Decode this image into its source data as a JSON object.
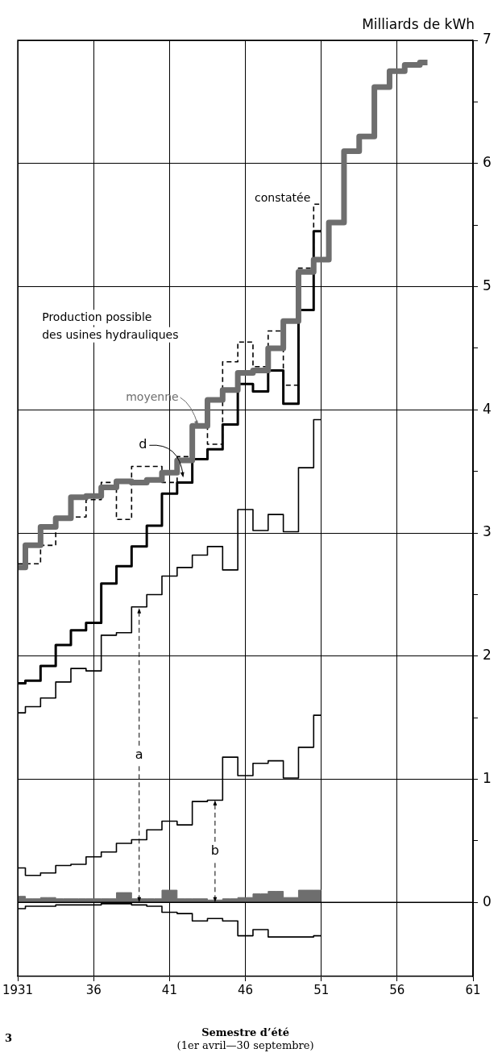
{
  "chart_data": {
    "type": "step",
    "xlabel": "Semestre d’été\n(1er avril—30 septembre)",
    "ylabel": "Milliards de kWh",
    "x": [
      1931,
      1932,
      1933,
      1934,
      1935,
      1936,
      1937,
      1938,
      1939,
      1940,
      1941,
      1942,
      1943,
      1944,
      1945,
      1946,
      1947,
      1948,
      1949,
      1950,
      1951
    ],
    "series": [
      {
        "name": "moyenne",
        "color": "#6e6e6e",
        "x": [
          1931,
          1932,
          1933,
          1934,
          1935,
          1936,
          1937,
          1938,
          1939,
          1940,
          1941,
          1942,
          1943,
          1944,
          1945,
          1946,
          1947,
          1948,
          1949,
          1950,
          1951,
          1952,
          1953,
          1954,
          1955,
          1956,
          1957,
          1958
        ],
        "values": [
          2.72,
          2.9,
          3.05,
          3.12,
          3.29,
          3.3,
          3.37,
          3.42,
          3.41,
          3.43,
          3.49,
          3.59,
          3.87,
          4.08,
          4.16,
          4.3,
          4.32,
          4.5,
          4.72,
          5.12,
          5.22,
          5.52,
          6.1,
          6.22,
          6.62,
          6.75,
          6.8,
          6.82
        ]
      },
      {
        "name": "constatée",
        "color": "#000000",
        "line_style": "dashed",
        "values": [
          2.75,
          2.75,
          2.9,
          3.13,
          3.13,
          3.27,
          3.41,
          3.11,
          3.54,
          3.54,
          3.41,
          3.62,
          3.88,
          3.72,
          4.39,
          4.55,
          4.35,
          4.64,
          4.2,
          5.15,
          5.67
        ]
      },
      {
        "color": "#000000",
        "values": [
          1.78,
          1.8,
          1.92,
          2.09,
          2.21,
          2.27,
          2.59,
          2.73,
          2.89,
          3.06,
          3.32,
          3.41,
          3.6,
          3.68,
          3.88,
          4.21,
          4.15,
          4.32,
          4.05,
          4.81,
          5.45
        ]
      },
      {
        "color": "#000000",
        "values": [
          1.54,
          1.59,
          1.66,
          1.79,
          1.9,
          1.88,
          2.17,
          2.19,
          2.4,
          2.5,
          2.65,
          2.72,
          2.82,
          2.89,
          2.7,
          3.19,
          3.02,
          3.15,
          3.01,
          3.53,
          3.92
        ]
      },
      {
        "color": "#000000",
        "values": [
          0.28,
          0.22,
          0.24,
          0.3,
          0.31,
          0.37,
          0.41,
          0.48,
          0.51,
          0.59,
          0.66,
          0.63,
          0.82,
          0.83,
          1.18,
          1.03,
          1.13,
          1.15,
          1.01,
          1.26,
          1.52
        ]
      },
      {
        "type": "area",
        "color": "#6e6e6e",
        "values": [
          0.05,
          0.03,
          0.04,
          0.03,
          0.03,
          0.03,
          0.03,
          0.08,
          0.03,
          0.03,
          0.1,
          0.03,
          0.03,
          0.02,
          0.03,
          0.04,
          0.07,
          0.09,
          0.04,
          0.1,
          0.1
        ]
      },
      {
        "color": "#000000",
        "values": [
          -0.05,
          -0.03,
          -0.03,
          -0.02,
          -0.02,
          -0.02,
          -0.01,
          -0.01,
          -0.02,
          -0.03,
          -0.08,
          -0.09,
          -0.15,
          -0.13,
          -0.15,
          -0.27,
          -0.22,
          -0.28,
          -0.28,
          -0.28,
          -0.27
        ]
      }
    ],
    "xlim": [
      1931,
      1961
    ],
    "xticks": [
      {
        "value": 1931,
        "label": "1931"
      },
      {
        "value": 1936,
        "label": "36"
      },
      {
        "value": 1941,
        "label": "41"
      },
      {
        "value": 1946,
        "label": "46"
      },
      {
        "value": 1951,
        "label": "51"
      },
      {
        "value": 1956,
        "label": "56"
      },
      {
        "value": 1961,
        "label": "61"
      }
    ],
    "ylim": [
      -0.6,
      7
    ],
    "yticks": [
      0,
      {
        "value": 0.5,
        "label": null
      },
      1,
      {
        "value": 1.5,
        "label": null
      },
      2,
      {
        "value": 2.5,
        "label": null
      },
      3,
      {
        "value": 3.5,
        "label": null
      },
      4,
      {
        "value": 4.5,
        "label": null
      },
      5,
      {
        "value": 5.5,
        "label": null
      },
      6,
      {
        "value": 6.5,
        "label": null
      },
      7
    ],
    "grid": true,
    "legend": false,
    "marker": "none",
    "annotations": [
      "Production possible des usines hydrauliques",
      {
        "text": "a",
        "x": 1939,
        "y": 2.39
      },
      {
        "text": "b",
        "x": 1944,
        "y": 0.83
      },
      {
        "text": "d",
        "x": 1941.9,
        "y": 3.45
      },
      "3"
    ]
  }
}
